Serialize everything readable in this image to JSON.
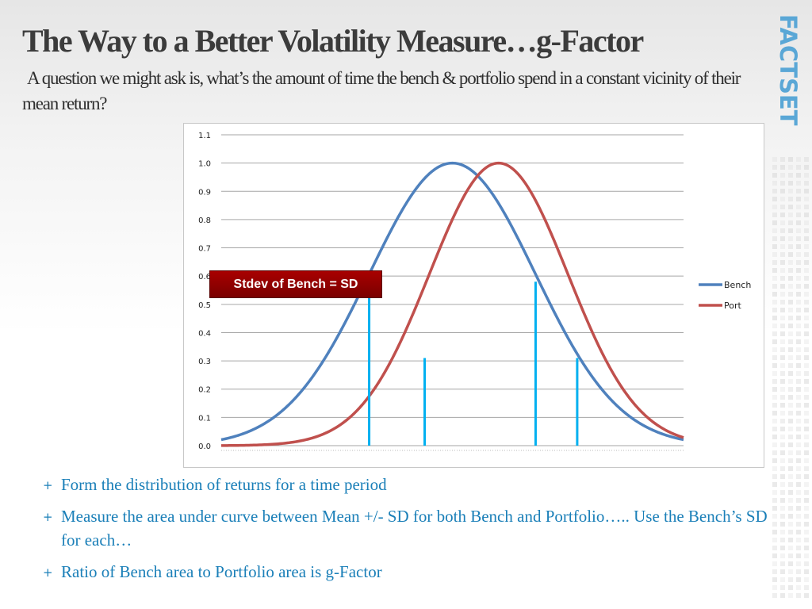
{
  "slide": {
    "title": "The Way to a Better Volatility Measure…g-Factor",
    "subtitle": "A question we might ask is, what’s the amount of time the bench & portfolio spend in a constant vicinity of their mean return?",
    "brand": "FACTSET",
    "callout": "Stdev of Bench = SD",
    "bullets": [
      "Form the distribution of returns for a time period",
      "Measure the area under curve between Mean +/- SD for both Bench and Portfolio….. Use the Bench’s SD for each…",
      "Ratio of Bench area to Portfolio area is g-Factor"
    ],
    "bullet_marker": "+"
  },
  "colors": {
    "bench": "#4f81bd",
    "port": "#c0504d",
    "sd_lines": "#00b0f0",
    "bullet_text": "#1a7fb8",
    "callout_bg": "#8b0000",
    "brand": "#5aa7d6"
  },
  "chart_data": {
    "type": "line",
    "ylim": [
      0,
      1.1
    ],
    "y_ticks": [
      "0.0",
      "0.1",
      "0.2",
      "0.3",
      "0.4",
      "0.5",
      "0.6",
      "0.7",
      "0.8",
      "0.9",
      "1.0",
      "1.1"
    ],
    "grid": true,
    "legend_position": "right",
    "xlim": [
      0,
      1
    ],
    "series": [
      {
        "name": "Bench",
        "mean": 0.5,
        "sd": 0.18,
        "peak": 1.0
      },
      {
        "name": "Port",
        "mean": 0.6,
        "sd": 0.15,
        "peak": 1.0
      }
    ],
    "sd_markers": [
      {
        "x": 0.32,
        "y": 0.58
      },
      {
        "x": 0.44,
        "y": 0.31
      },
      {
        "x": 0.68,
        "y": 0.58
      },
      {
        "x": 0.77,
        "y": 0.31
      }
    ]
  }
}
